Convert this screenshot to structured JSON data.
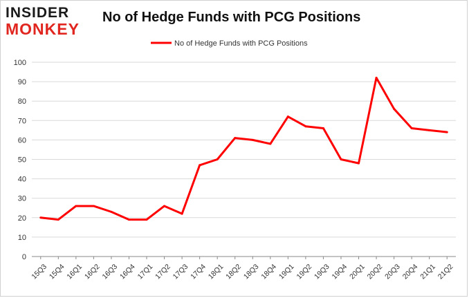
{
  "logo": {
    "line1": "INSIDER",
    "line2": "MONKEY"
  },
  "colors": {
    "series": "#ff0000",
    "logo_accent": "#e0261f",
    "grid": "#d9d9d9"
  },
  "chart_data": {
    "type": "line",
    "title": "No of Hedge Funds with PCG Positions",
    "xlabel": "",
    "ylabel": "",
    "ylim": [
      0,
      100
    ],
    "yticks": [
      0,
      10,
      20,
      30,
      40,
      50,
      60,
      70,
      80,
      90,
      100
    ],
    "grid": true,
    "legend_position": "top-center",
    "categories": [
      "15Q3",
      "15Q4",
      "16Q1",
      "16Q2",
      "16Q3",
      "16Q4",
      "17Q1",
      "17Q2",
      "17Q3",
      "17Q4",
      "18Q1",
      "18Q2",
      "18Q3",
      "18Q4",
      "19Q1",
      "19Q2",
      "19Q3",
      "19Q4",
      "20Q1",
      "20Q2",
      "20Q3",
      "20Q4",
      "21Q1",
      "21Q2"
    ],
    "series": [
      {
        "name": "No of Hedge Funds with PCG Positions",
        "values": [
          20,
          19,
          26,
          26,
          23,
          19,
          19,
          26,
          22,
          47,
          50,
          61,
          60,
          58,
          72,
          67,
          66,
          50,
          48,
          92,
          76,
          66,
          65,
          64
        ]
      }
    ]
  }
}
